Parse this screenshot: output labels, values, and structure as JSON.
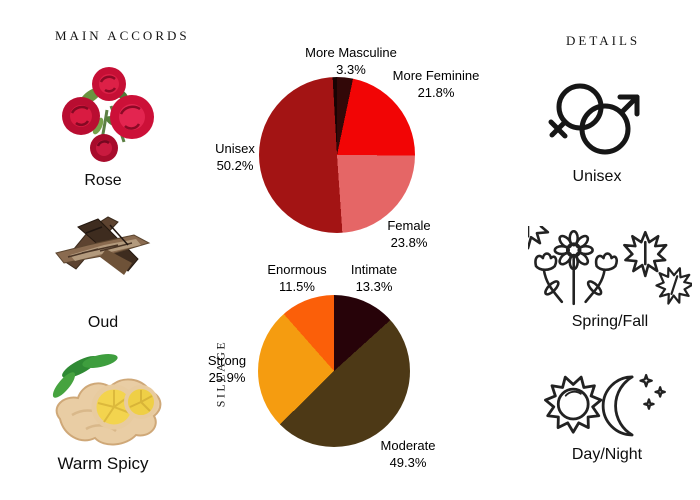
{
  "left_panel": {
    "title": "MAIN ACCORDS",
    "accords": [
      {
        "name": "Rose",
        "image": "rose-bouquet-photo"
      },
      {
        "name": "Oud",
        "image": "oud-wood-photo"
      },
      {
        "name": "Warm Spicy",
        "image": "ginger-root-photo"
      }
    ]
  },
  "right_panel": {
    "title": "DETAILS",
    "details": [
      {
        "label": "Unisex",
        "icon": "male-female-symbols-icon"
      },
      {
        "label": "Spring/Fall",
        "icon": "flowers-and-maple-leaves-icon"
      },
      {
        "label": "Day/Night",
        "icon": "sun-and-moon-icon"
      }
    ]
  },
  "chart_data": [
    {
      "type": "pie",
      "title": "",
      "start": "12 o'clock",
      "direction": "clockwise",
      "legend_position": "none",
      "labels": "outside with percentages",
      "slices": [
        {
          "label": "More Masculine",
          "pct": "3.3%",
          "value": 3.3,
          "color": "#320808"
        },
        {
          "label": "More Feminine",
          "pct": "21.8%",
          "value": 21.8,
          "color": "#f20505"
        },
        {
          "label": "Female",
          "pct": "23.8%",
          "value": 23.8,
          "color": "#e56666"
        },
        {
          "label": "Unisex",
          "pct": "50.2%",
          "value": 50.2,
          "color": "#a31414"
        },
        {
          "label": "",
          "pct": "",
          "value": 0.9,
          "color": "#190303"
        }
      ]
    },
    {
      "type": "pie",
      "title": "SILLAGE",
      "start": "12 o'clock",
      "direction": "clockwise",
      "legend_position": "none",
      "labels": "outside with percentages",
      "slices": [
        {
          "label": "Intimate",
          "pct": "13.3%",
          "value": 13.3,
          "color": "#270309"
        },
        {
          "label": "Moderate",
          "pct": "49.3%",
          "value": 49.3,
          "color": "#4d3916"
        },
        {
          "label": "Strong",
          "pct": "25.9%",
          "value": 25.9,
          "color": "#f59c10"
        },
        {
          "label": "Enormous",
          "pct": "11.5%",
          "value": 11.5,
          "color": "#fb5f09"
        }
      ]
    }
  ]
}
